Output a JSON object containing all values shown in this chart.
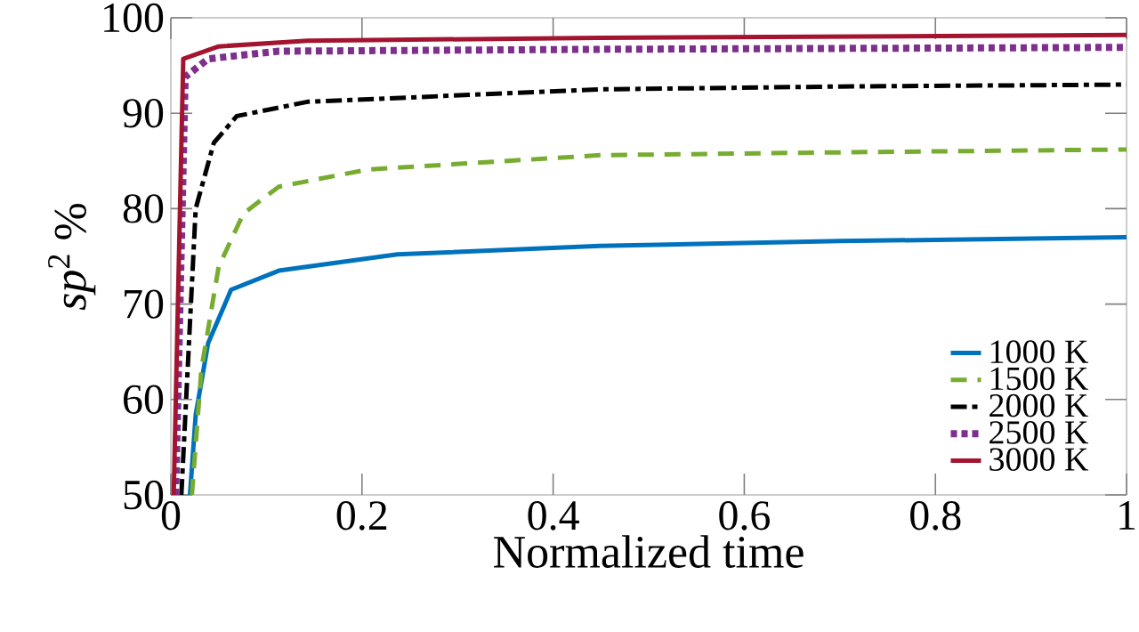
{
  "chart_data": {
    "type": "line",
    "xlabel": "Normalized time",
    "ylabel": "*sp*$^{2}$ %",
    "xlim": [
      0,
      1
    ],
    "ylim": [
      50,
      100
    ],
    "xticks": [
      0,
      0.2,
      0.4,
      0.6,
      0.8,
      1
    ],
    "yticks": [
      50,
      60,
      70,
      80,
      90,
      100
    ],
    "legend": "bottom right",
    "grid": false,
    "series": [
      {
        "name": "1000 K",
        "color": "#0072bd",
        "line_style": "solid",
        "x": [
          0.02,
          0.026,
          0.039,
          0.063,
          0.113,
          0.237,
          0.449,
          0.7,
          1
        ],
        "values": [
          50,
          58.4,
          65.9,
          71.5,
          73.5,
          75.2,
          76.1,
          76.6,
          77.0
        ]
      },
      {
        "name": "1500 K",
        "color": "#77ac30",
        "line_style": "dashed",
        "x": [
          0.022,
          0.032,
          0.05,
          0.076,
          0.113,
          0.206,
          0.449,
          0.7,
          1
        ],
        "values": [
          50,
          63.2,
          73.9,
          79.5,
          82.3,
          84.1,
          85.6,
          85.9,
          86.2
        ]
      },
      {
        "name": "2000 K",
        "color": "#000000",
        "line_style": "dashdot",
        "x": [
          0.011,
          0.026,
          0.045,
          0.069,
          0.143,
          0.449,
          0.7,
          1
        ],
        "values": [
          50,
          80.0,
          86.9,
          89.7,
          91.2,
          92.5,
          92.8,
          93.0
        ]
      },
      {
        "name": "2500 K",
        "color": "#7e2f8e",
        "line_style": "dotted",
        "x": [
          0.005,
          0.015,
          0.039,
          0.113,
          0.449,
          1
        ],
        "values": [
          50,
          93.8,
          95.7,
          96.5,
          96.7,
          96.9
        ]
      },
      {
        "name": "3000 K",
        "color": "#a2142f",
        "line_style": "solid",
        "x": [
          0.003,
          0.013,
          0.05,
          0.143,
          0.449,
          1
        ],
        "values": [
          50,
          95.7,
          97.0,
          97.6,
          97.9,
          98.2
        ]
      }
    ]
  }
}
